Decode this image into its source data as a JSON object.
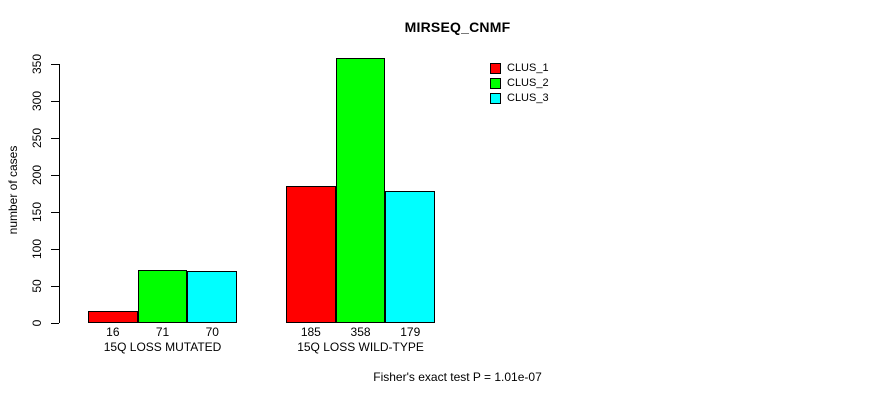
{
  "chart_data": {
    "type": "bar",
    "title": "MIRSEQ_CNMF",
    "ylabel": "number of cases",
    "xlabel": "",
    "ylim": [
      0,
      350
    ],
    "yticks": [
      0,
      50,
      100,
      150,
      200,
      250,
      300,
      350
    ],
    "categories": [
      "15Q LOSS MUTATED",
      "15Q LOSS WILD-TYPE"
    ],
    "series": [
      {
        "name": "CLUS_1",
        "color": "#FF0000",
        "values": [
          16,
          185
        ]
      },
      {
        "name": "CLUS_2",
        "color": "#00FF00",
        "values": [
          71,
          358
        ]
      },
      {
        "name": "CLUS_3",
        "color": "#00FFFF",
        "values": [
          70,
          179
        ]
      }
    ],
    "bar_value_labels": [
      [
        16,
        71,
        70
      ],
      [
        185,
        358,
        179
      ]
    ],
    "legend_position": "top-right-inside",
    "grid": false,
    "annotation": "Fisher's exact test P = 1.01e-07",
    "background_color": "#FFFFFF",
    "axis_color": "#000000"
  }
}
